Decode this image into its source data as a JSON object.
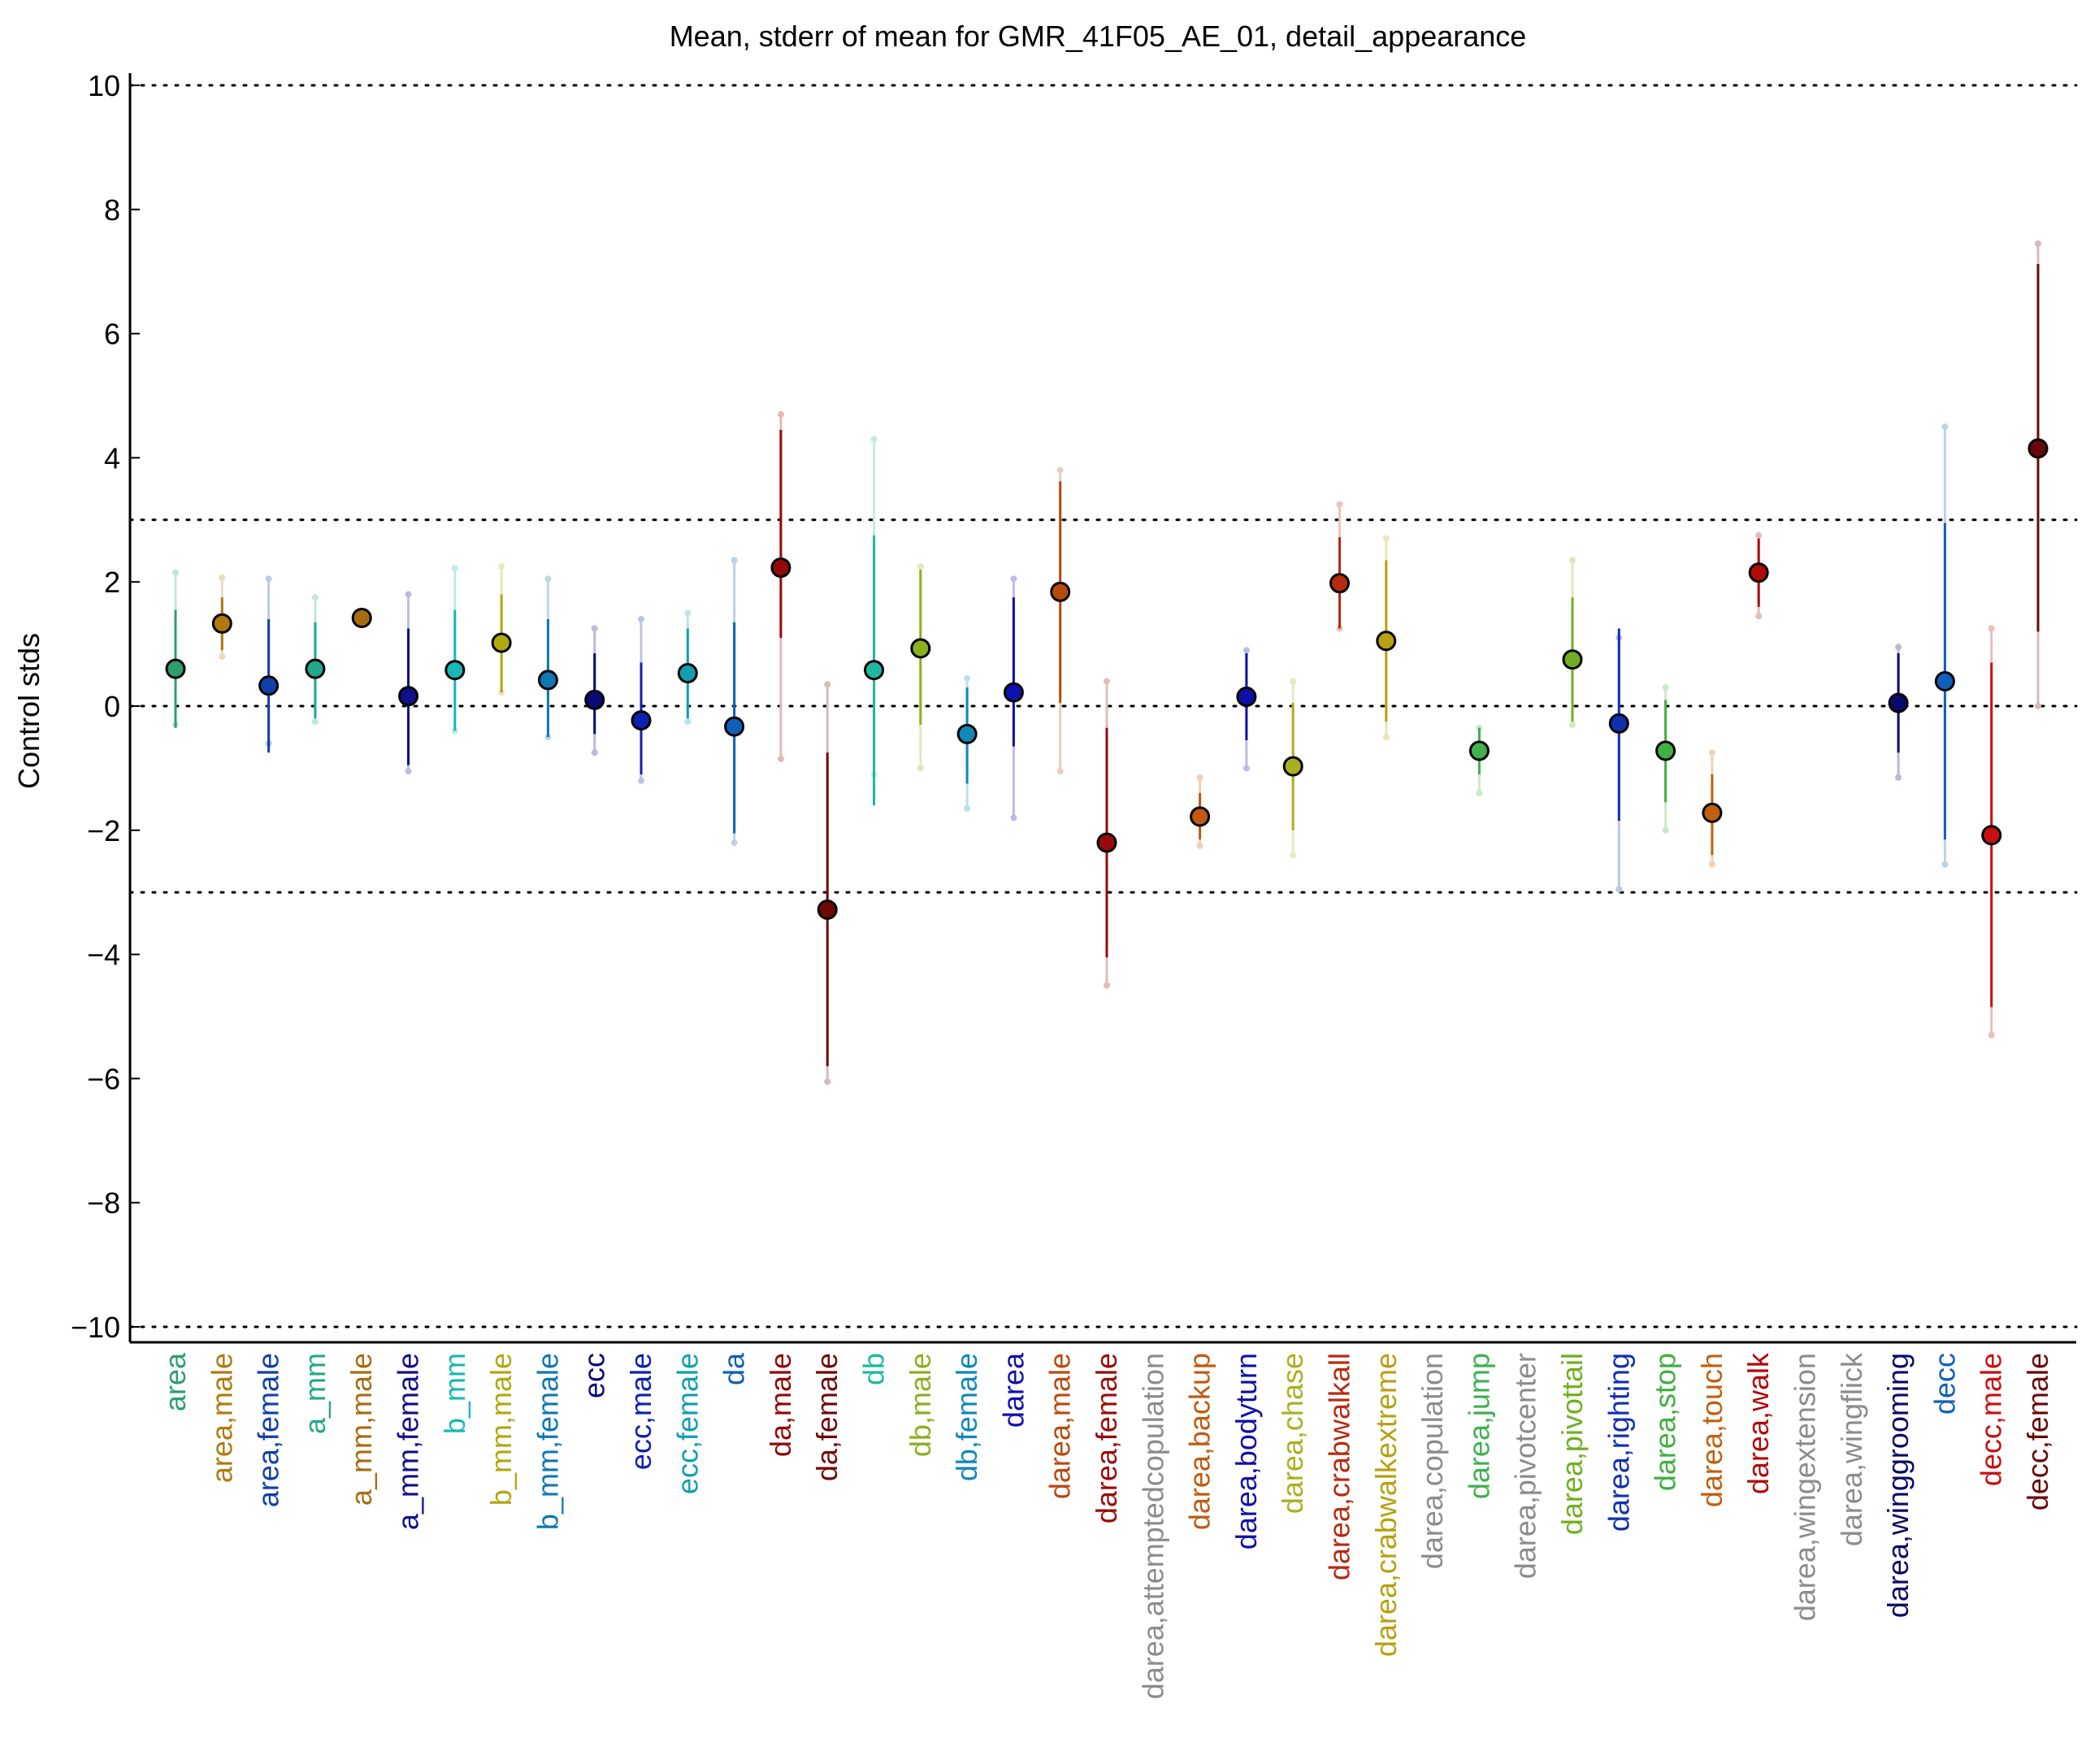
{
  "chart_data": {
    "type": "scatter",
    "title": "Mean, stderr of mean for GMR_41F05_AE_01, detail_appearance",
    "ylabel": "Control stds",
    "xlabel": "",
    "ylim": [
      -10.3,
      10.3
    ],
    "yticks": [
      10,
      8,
      6,
      4,
      2,
      0,
      -2,
      -4,
      -6,
      -8,
      -10
    ],
    "ytick_labels": [
      "10",
      "8",
      "6",
      "4",
      "2",
      "0",
      "−2",
      "−4",
      "−6",
      "−8",
      "−10"
    ],
    "reference_lines": [
      10,
      3,
      0,
      -3,
      -10
    ],
    "grid": false,
    "legend": "none",
    "categories": [
      {
        "label": "area",
        "color": "#2e9e6e",
        "mean": 0.6,
        "lo": -0.35,
        "hi": 1.55,
        "whisk_lo": -0.3,
        "whisk_hi": 2.15
      },
      {
        "label": "area,male",
        "color": "#b07a10",
        "mean": 1.33,
        "lo": 0.9,
        "hi": 1.75,
        "whisk_lo": 0.8,
        "whisk_hi": 2.07
      },
      {
        "label": "area,female",
        "color": "#1040a8",
        "mean": 0.33,
        "lo": -0.75,
        "hi": 1.4,
        "whisk_lo": -0.6,
        "whisk_hi": 2.05
      },
      {
        "label": "a_mm",
        "color": "#22a88a",
        "mean": 0.6,
        "lo": -0.2,
        "hi": 1.35,
        "whisk_lo": -0.25,
        "whisk_hi": 1.75
      },
      {
        "label": "a_mm,male",
        "color": "#a86c10",
        "mean": 1.42,
        "lo": 1.42,
        "hi": 1.42,
        "whisk_lo": 1.42,
        "whisk_hi": 1.42
      },
      {
        "label": "a_mm,female",
        "color": "#10108a",
        "mean": 0.16,
        "lo": -0.95,
        "hi": 1.25,
        "whisk_lo": -1.05,
        "whisk_hi": 1.8
      },
      {
        "label": "b_mm",
        "color": "#18b8b8",
        "mean": 0.58,
        "lo": -0.4,
        "hi": 1.55,
        "whisk_lo": -0.4,
        "whisk_hi": 2.22
      },
      {
        "label": "b_mm,male",
        "color": "#b0a810",
        "mean": 1.02,
        "lo": 0.22,
        "hi": 1.8,
        "whisk_lo": 0.22,
        "whisk_hi": 2.25
      },
      {
        "label": "b_mm,female",
        "color": "#1078b0",
        "mean": 0.42,
        "lo": -0.5,
        "hi": 1.4,
        "whisk_lo": -0.5,
        "whisk_hi": 2.05
      },
      {
        "label": "ecc",
        "color": "#0a0a7a",
        "mean": 0.1,
        "lo": -0.45,
        "hi": 0.85,
        "whisk_lo": -0.75,
        "whisk_hi": 1.25
      },
      {
        "label": "ecc,male",
        "color": "#1020b0",
        "mean": -0.23,
        "lo": -1.1,
        "hi": 0.7,
        "whisk_lo": -1.2,
        "whisk_hi": 1.4
      },
      {
        "label": "ecc,female",
        "color": "#10a0b0",
        "mean": 0.53,
        "lo": -0.2,
        "hi": 1.25,
        "whisk_lo": -0.25,
        "whisk_hi": 1.5
      },
      {
        "label": "da",
        "color": "#1060b8",
        "mean": -0.33,
        "lo": -2.05,
        "hi": 1.35,
        "whisk_lo": -2.2,
        "whisk_hi": 2.35
      },
      {
        "label": "da,male",
        "color": "#900a0a",
        "mean": 2.23,
        "lo": 1.1,
        "hi": 4.45,
        "whisk_lo": -0.85,
        "whisk_hi": 4.7
      },
      {
        "label": "da,female",
        "color": "#700808",
        "mean": -3.28,
        "lo": -5.8,
        "hi": -0.75,
        "whisk_lo": -6.05,
        "whisk_hi": 0.35
      },
      {
        "label": "db",
        "color": "#20b8a0",
        "mean": 0.58,
        "lo": -1.6,
        "hi": 2.75,
        "whisk_lo": -1.1,
        "whisk_hi": 4.3
      },
      {
        "label": "db,male",
        "color": "#8ab020",
        "mean": 0.93,
        "lo": -0.3,
        "hi": 2.2,
        "whisk_lo": -1.0,
        "whisk_hi": 2.25
      },
      {
        "label": "db,female",
        "color": "#1088b8",
        "mean": -0.45,
        "lo": -1.25,
        "hi": 0.3,
        "whisk_lo": -1.65,
        "whisk_hi": 0.45
      },
      {
        "label": "darea",
        "color": "#1010b0",
        "mean": 0.22,
        "lo": -0.65,
        "hi": 1.75,
        "whisk_lo": -1.8,
        "whisk_hi": 2.05
      },
      {
        "label": "darea,male",
        "color": "#b84a10",
        "mean": 1.84,
        "lo": 0.05,
        "hi": 3.62,
        "whisk_lo": -1.05,
        "whisk_hi": 3.8
      },
      {
        "label": "darea,female",
        "color": "#9a0a0a",
        "mean": -2.2,
        "lo": -4.05,
        "hi": -0.35,
        "whisk_lo": -4.5,
        "whisk_hi": 0.4
      },
      {
        "label": "darea,attemptedcopulation",
        "color": "#8c8c8c",
        "mean": null,
        "lo": null,
        "hi": null,
        "whisk_lo": null,
        "whisk_hi": null
      },
      {
        "label": "darea,backup",
        "color": "#c05a10",
        "mean": -1.78,
        "lo": -2.15,
        "hi": -1.4,
        "whisk_lo": -2.25,
        "whisk_hi": -1.15
      },
      {
        "label": "darea,bodyturn",
        "color": "#1010a8",
        "mean": 0.15,
        "lo": -0.55,
        "hi": 0.85,
        "whisk_lo": -1.0,
        "whisk_hi": 0.9
      },
      {
        "label": "darea,chase",
        "color": "#a8b020",
        "mean": -0.97,
        "lo": -2.0,
        "hi": 0.05,
        "whisk_lo": -2.4,
        "whisk_hi": 0.4
      },
      {
        "label": "darea,crabwalkall",
        "color": "#b82a10",
        "mean": 1.98,
        "lo": 1.25,
        "hi": 2.72,
        "whisk_lo": 1.25,
        "whisk_hi": 3.25
      },
      {
        "label": "darea,crabwalkextreme",
        "color": "#b8a010",
        "mean": 1.05,
        "lo": -0.25,
        "hi": 2.35,
        "whisk_lo": -0.5,
        "whisk_hi": 2.7
      },
      {
        "label": "darea,copulation",
        "color": "#8c8c8c",
        "mean": null,
        "lo": null,
        "hi": null,
        "whisk_lo": null,
        "whisk_hi": null
      },
      {
        "label": "darea,jump",
        "color": "#40b050",
        "mean": -0.72,
        "lo": -1.1,
        "hi": -0.35,
        "whisk_lo": -1.4,
        "whisk_hi": -0.35
      },
      {
        "label": "darea,pivotcenter",
        "color": "#8c8c8c",
        "mean": null,
        "lo": null,
        "hi": null,
        "whisk_lo": null,
        "whisk_hi": null
      },
      {
        "label": "darea,pivottail",
        "color": "#70b020",
        "mean": 0.75,
        "lo": -0.25,
        "hi": 1.75,
        "whisk_lo": -0.3,
        "whisk_hi": 2.35
      },
      {
        "label": "darea,righting",
        "color": "#1030b0",
        "mean": -0.28,
        "lo": -1.85,
        "hi": 1.25,
        "whisk_lo": -2.95,
        "whisk_hi": 1.1
      },
      {
        "label": "darea,stop",
        "color": "#40b040",
        "mean": -0.72,
        "lo": -1.55,
        "hi": 0.1,
        "whisk_lo": -2.0,
        "whisk_hi": 0.3
      },
      {
        "label": "darea,touch",
        "color": "#c06010",
        "mean": -1.72,
        "lo": -2.4,
        "hi": -1.1,
        "whisk_lo": -2.55,
        "whisk_hi": -0.75
      },
      {
        "label": "darea,walk",
        "color": "#b00a0a",
        "mean": 2.15,
        "lo": 1.6,
        "hi": 2.7,
        "whisk_lo": 1.45,
        "whisk_hi": 2.75
      },
      {
        "label": "darea,wingextension",
        "color": "#8c8c8c",
        "mean": null,
        "lo": null,
        "hi": null,
        "whisk_lo": null,
        "whisk_hi": null
      },
      {
        "label": "darea,wingflick",
        "color": "#8c8c8c",
        "mean": null,
        "lo": null,
        "hi": null,
        "whisk_lo": null,
        "whisk_hi": null
      },
      {
        "label": "darea,winggrooming",
        "color": "#0a0a6a",
        "mean": 0.05,
        "lo": -0.75,
        "hi": 0.85,
        "whisk_lo": -1.15,
        "whisk_hi": 0.95
      },
      {
        "label": "decc",
        "color": "#1060b8",
        "mean": 0.4,
        "lo": -2.15,
        "hi": 2.95,
        "whisk_lo": -2.55,
        "whisk_hi": 4.5
      },
      {
        "label": "decc,male",
        "color": "#c81010",
        "mean": -2.08,
        "lo": -4.85,
        "hi": 0.7,
        "whisk_lo": -5.3,
        "whisk_hi": 1.25
      },
      {
        "label": "decc,female",
        "color": "#6a0808",
        "mean": 4.15,
        "lo": 1.2,
        "hi": 7.12,
        "whisk_lo": 0.0,
        "whisk_hi": 7.45
      }
    ]
  }
}
